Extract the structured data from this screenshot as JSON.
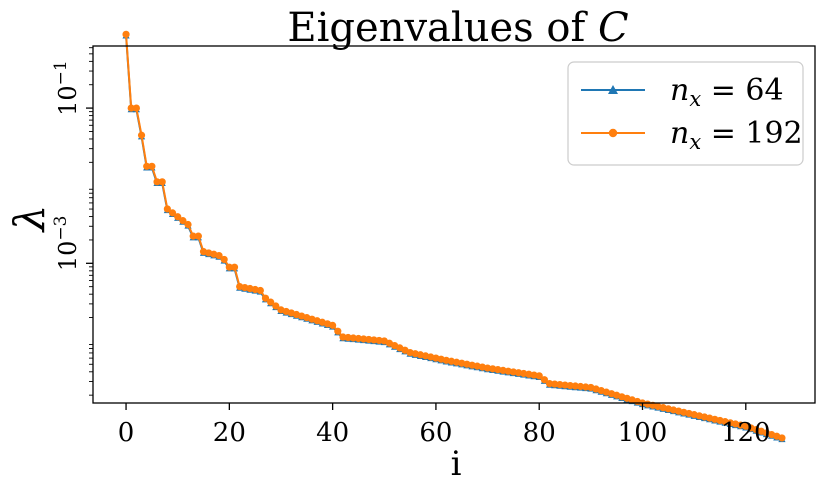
{
  "chart_data": {
    "type": "line",
    "title": "Eigenvalues of C",
    "title_prefix": "Eigenvalues of ",
    "title_var": "C",
    "xlabel": "i",
    "ylabel": "λ",
    "xlim": [
      -6.4,
      133.4
    ],
    "ylim_log10": [
      -4.8,
      -0.2
    ],
    "yscale": "log",
    "grid": false,
    "legend_position": "top-right",
    "x_ticks": [
      0,
      20,
      40,
      60,
      80,
      100,
      120
    ],
    "x_tick_labels": [
      "0",
      "20",
      "40",
      "60",
      "80",
      "100",
      "120"
    ],
    "y_ticks": [
      0.1,
      0.001
    ],
    "y_tick_labels": [
      {
        "base": "10",
        "exp": "−1"
      },
      {
        "base": "10",
        "exp": "−3"
      }
    ],
    "anchors": [
      [
        0,
        0.8913
      ],
      [
        1,
        0.1
      ],
      [
        2,
        0.1
      ],
      [
        3,
        0.04467
      ],
      [
        4,
        0.01778
      ],
      [
        5,
        0.01778
      ],
      [
        6,
        0.01122
      ],
      [
        7,
        0.01122
      ],
      [
        8,
        0.005012
      ],
      [
        10,
        0.003981
      ],
      [
        12,
        0.003162
      ],
      [
        13,
        0.002239
      ],
      [
        14,
        0.002239
      ],
      [
        15,
        0.001413
      ],
      [
        18,
        0.001259
      ],
      [
        19,
        0.001122
      ],
      [
        20,
        0.000891
      ],
      [
        21,
        0.000891
      ],
      [
        22,
        0.0005012
      ],
      [
        26,
        0.0004467
      ],
      [
        27,
        0.0003548
      ],
      [
        30,
        0.0002512
      ],
      [
        35,
        0.0001995
      ],
      [
        40,
        0.0001585
      ],
      [
        42,
        0.0001122
      ],
      [
        50,
        0.0001
      ],
      [
        55,
        7.079e-05
      ],
      [
        62,
        5.623e-05
      ],
      [
        70,
        4.467e-05
      ],
      [
        80,
        3.548e-05
      ],
      [
        82,
        2.818e-05
      ],
      [
        90,
        2.512e-05
      ],
      [
        100,
        1.585e-05
      ],
      [
        110,
        1.122e-05
      ],
      [
        120,
        7.943e-06
      ],
      [
        127,
        5.623e-06
      ]
    ],
    "n_points": 128,
    "series": [
      {
        "name": "n_x = 64",
        "label_var": "n",
        "label_sub": "x",
        "label_rest": " = 64",
        "marker": "triangle",
        "color": "#1f77b4",
        "scale": 0.96
      },
      {
        "name": "n_x = 192",
        "label_var": "n",
        "label_sub": "x",
        "label_rest": " = 192",
        "marker": "circle",
        "color": "#ff7f0e",
        "scale": 1.0
      }
    ]
  }
}
